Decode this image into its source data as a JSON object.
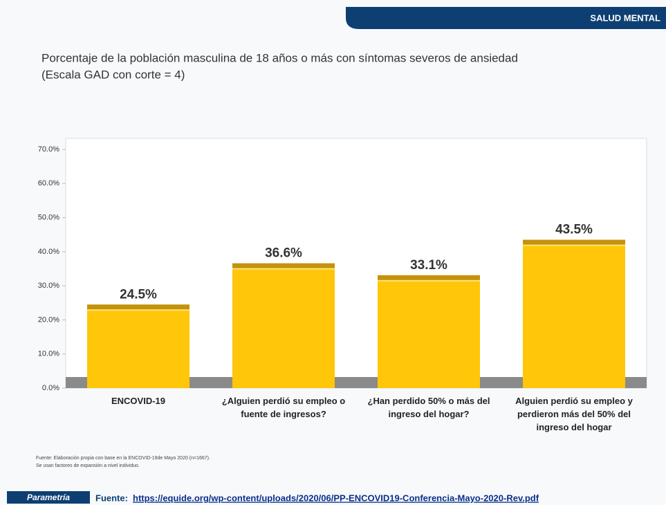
{
  "header": "SALUD MENTAL",
  "chart_data": {
    "type": "bar",
    "title": "Porcentaje de la población masculina de 18 años o más con síntomas severos de ansiedad",
    "subtitle": "(Escala GAD con corte = 4)",
    "categories": [
      "ENCOVID-19",
      "¿Alguien perdió su empleo o fuente de ingresos?",
      "¿Han perdido 50% o más del ingreso del hogar?",
      "Alguien perdió su empleo y perdieron más del 50% del ingreso del hogar"
    ],
    "values": [
      24.5,
      36.6,
      33.1,
      43.5
    ],
    "value_labels": [
      "24.5%",
      "36.6%",
      "33.1%",
      "43.5%"
    ],
    "color": "#ffc60a",
    "ylim": [
      0,
      70
    ],
    "yticks": [
      {
        "value": 0,
        "label": "0.0%"
      },
      {
        "value": 10,
        "label": "10.0%"
      },
      {
        "value": 20,
        "label": "20.0%"
      },
      {
        "value": 30,
        "label": "30.0%"
      },
      {
        "value": 40,
        "label": "40.0%"
      },
      {
        "value": 50,
        "label": "50.0%"
      },
      {
        "value": 60,
        "label": "60.0%"
      },
      {
        "value": 70,
        "label": "70.0%"
      }
    ],
    "grid": false
  },
  "footnote": [
    "Fuente: Elaboración propia con base en la ENCOVID-19de Mayo 2020 (n=1667).",
    "Se usan factores de expansión a nivel individuo."
  ],
  "footer": {
    "logo": "Parametría",
    "source_label": "Fuente:",
    "source_url": "https://equide.org/wp-content/uploads/2020/06/PP-ENCOVID19-Conferencia-Mayo-2020-Rev.pdf"
  }
}
